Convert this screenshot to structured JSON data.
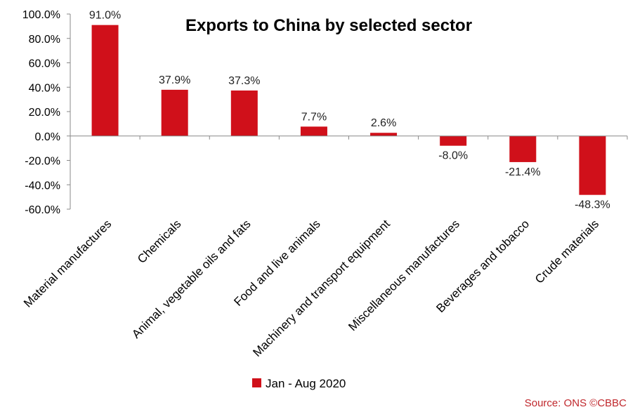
{
  "chart_data": {
    "type": "bar",
    "title": "Exports to China by selected sector",
    "categories": [
      "Material manufactures",
      "Chemicals",
      "Animal, vegetable oils and fats",
      "Food and live animals",
      "Machinery and transport equipment",
      "Miscellaneous manufactures",
      "Beverages and tobacco",
      "Crude materials"
    ],
    "series": [
      {
        "name": "Jan - Aug 2020",
        "values": [
          91.0,
          37.9,
          37.3,
          7.7,
          2.6,
          -8.0,
          -21.4,
          -48.3
        ],
        "data_labels": [
          "91.0%",
          "37.9%",
          "37.3%",
          "7.7%",
          "2.6%",
          "-8.0%",
          "-21.4%",
          "-48.3%"
        ],
        "color": "#d0101a"
      }
    ],
    "ylim": [
      -60,
      100
    ],
    "yticks": [
      100,
      80,
      60,
      40,
      20,
      0,
      -20,
      -40,
      -60
    ],
    "ytick_labels": [
      "100.0%",
      "80.0%",
      "60.0%",
      "40.0%",
      "20.0%",
      "0.0%",
      "-20.0%",
      "-40.0%",
      "-60.0%"
    ],
    "grid": false,
    "legend": "bottom"
  },
  "source": "Source: ONS ©CBBC"
}
